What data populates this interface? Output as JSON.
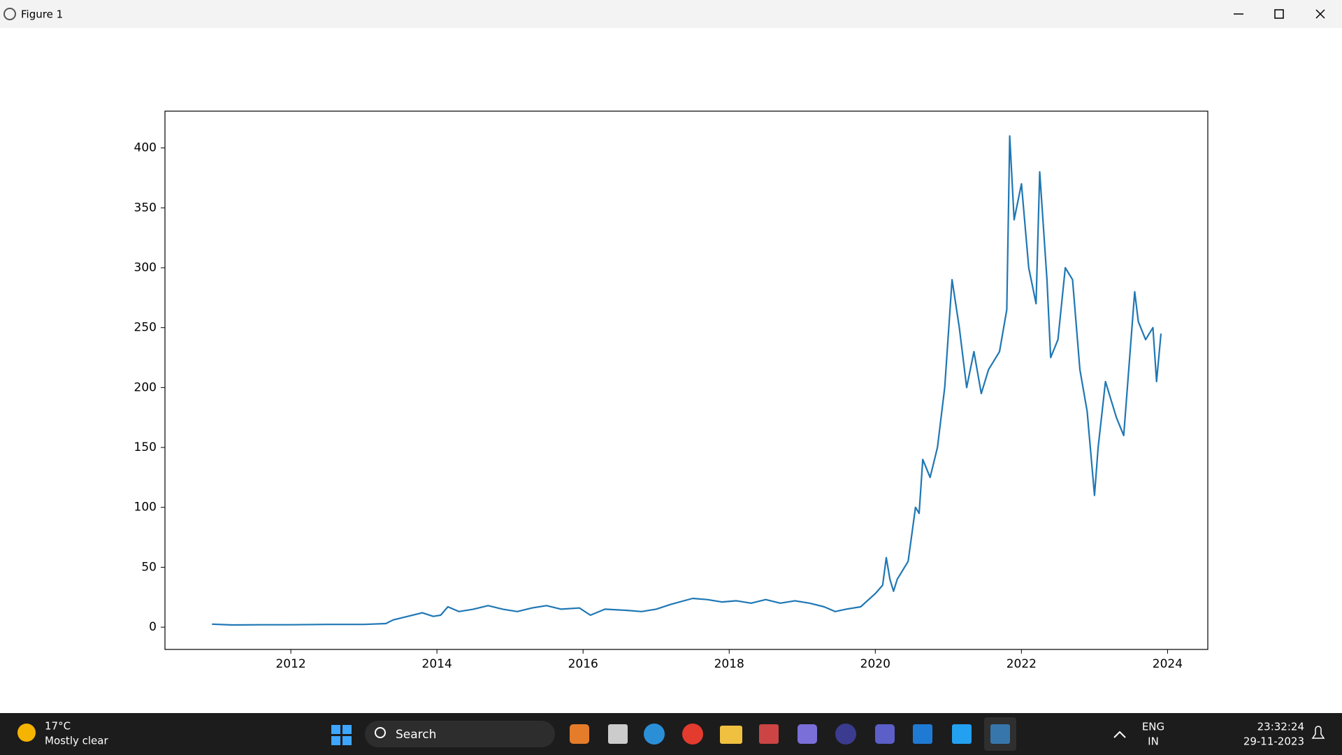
{
  "window": {
    "title": "Figure 1"
  },
  "chart_data": {
    "type": "line",
    "color": "#1f77b4",
    "x": [
      2010.92,
      2011.2,
      2011.6,
      2012,
      2012.5,
      2013,
      2013.3,
      2013.4,
      2013.6,
      2013.8,
      2013.95,
      2014.05,
      2014.15,
      2014.3,
      2014.5,
      2014.7,
      2014.9,
      2015.1,
      2015.3,
      2015.5,
      2015.7,
      2015.95,
      2016.1,
      2016.3,
      2016.6,
      2016.8,
      2017.0,
      2017.2,
      2017.5,
      2017.7,
      2017.9,
      2018.1,
      2018.3,
      2018.5,
      2018.7,
      2018.9,
      2019.1,
      2019.3,
      2019.45,
      2019.6,
      2019.8,
      2020.0,
      2020.1,
      2020.15,
      2020.2,
      2020.25,
      2020.3,
      2020.45,
      2020.55,
      2020.6,
      2020.65,
      2020.75,
      2020.85,
      2020.95,
      2021.05,
      2021.15,
      2021.25,
      2021.35,
      2021.45,
      2021.55,
      2021.7,
      2021.8,
      2021.84,
      2021.9,
      2022.0,
      2022.1,
      2022.2,
      2022.25,
      2022.35,
      2022.4,
      2022.5,
      2022.6,
      2022.7,
      2022.8,
      2022.9,
      2023.0,
      2023.05,
      2023.15,
      2023.3,
      2023.4,
      2023.55,
      2023.6,
      2023.7,
      2023.8,
      2023.85,
      2023.91
    ],
    "values": [
      2.5,
      1.8,
      2,
      2,
      2.3,
      2.3,
      3,
      6,
      9,
      12,
      9,
      10,
      17,
      13,
      15,
      18,
      15,
      13,
      16,
      18,
      15,
      16,
      10,
      15,
      14,
      13,
      15,
      19,
      24,
      23,
      21,
      22,
      20,
      23,
      20,
      22,
      20,
      17,
      13,
      15,
      17,
      28,
      35,
      58,
      40,
      30,
      40,
      55,
      100,
      95,
      140,
      125,
      150,
      200,
      290,
      250,
      200,
      230,
      195,
      215,
      230,
      265,
      410,
      340,
      370,
      300,
      270,
      380,
      290,
      225,
      240,
      300,
      290,
      215,
      180,
      110,
      150,
      205,
      175,
      160,
      280,
      255,
      240,
      250,
      205,
      245
    ],
    "xlim": [
      2010.277,
      2024.551
    ],
    "ylim": [
      -18.6,
      430.7
    ],
    "xticks": [
      2012,
      2014,
      2016,
      2018,
      2020,
      2022,
      2024
    ],
    "yticks": [
      0,
      50,
      100,
      150,
      200,
      250,
      300,
      350,
      400
    ]
  },
  "taskbar": {
    "temperature": "17°C",
    "weather": "Mostly clear",
    "search": "Search",
    "language": "ENG",
    "region": "IN",
    "time": "23:32:24",
    "date": "29-11-2023"
  }
}
